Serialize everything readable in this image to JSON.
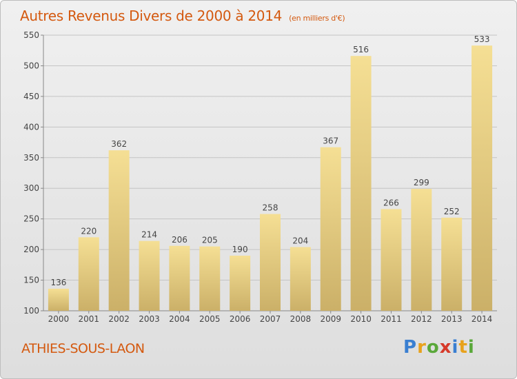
{
  "title": "Autres Revenus Divers de 2000 à 2014",
  "subtitle": "(en milliers d'€)",
  "commune": "ATHIES-SOUS-LAON",
  "brand": {
    "letters": [
      "P",
      "r",
      "o",
      "x",
      "i",
      "t",
      "i"
    ],
    "colors": [
      "#3a7fd1",
      "#e8a21c",
      "#5aa83a",
      "#d63a2a",
      "#3a7fd1",
      "#e8a21c",
      "#5aa83a"
    ]
  },
  "colors": {
    "title": "#d4590f",
    "bar_light": "#f5df94",
    "bar_dark": "#cbb068",
    "grid": "#c4c4c4",
    "axis_text": "#444444"
  },
  "chart_data": {
    "type": "bar",
    "categories": [
      "2000",
      "2001",
      "2002",
      "2003",
      "2004",
      "2005",
      "2006",
      "2007",
      "2008",
      "2009",
      "2010",
      "2011",
      "2012",
      "2013",
      "2014"
    ],
    "values": [
      136,
      220,
      362,
      214,
      206,
      205,
      190,
      258,
      204,
      367,
      516,
      266,
      299,
      252,
      533
    ],
    "ylim": [
      100,
      550
    ],
    "yticks": [
      100,
      150,
      200,
      250,
      300,
      350,
      400,
      450,
      500,
      550
    ],
    "grid": true
  }
}
